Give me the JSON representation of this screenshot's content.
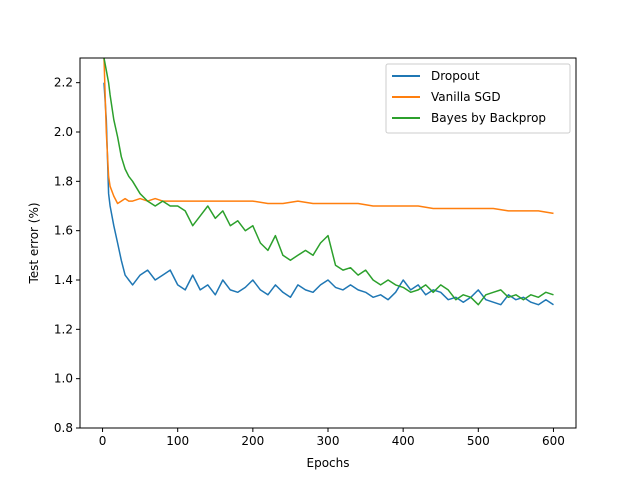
{
  "chart_data": {
    "type": "line",
    "xlabel": "Epochs",
    "ylabel": "Test error (%)",
    "xlim": [
      -30,
      630
    ],
    "ylim": [
      0.8,
      2.3
    ],
    "xticks": [
      0,
      100,
      200,
      300,
      400,
      500,
      600
    ],
    "yticks": [
      0.8,
      1.0,
      1.2,
      1.4,
      1.6,
      1.8,
      2.0,
      2.2
    ],
    "ytick_labels": [
      "0.8",
      "1.0",
      "1.2",
      "1.4",
      "1.6",
      "1.8",
      "2.0",
      "2.2"
    ],
    "legend_position": "top-right",
    "grid": false,
    "series": [
      {
        "name": "Dropout",
        "color": "#1f77b4",
        "x": [
          2,
          5,
          8,
          10,
          15,
          20,
          25,
          30,
          35,
          40,
          50,
          60,
          70,
          80,
          90,
          100,
          110,
          120,
          130,
          140,
          150,
          160,
          170,
          180,
          190,
          200,
          210,
          220,
          230,
          240,
          250,
          260,
          270,
          280,
          290,
          300,
          310,
          320,
          330,
          340,
          350,
          360,
          370,
          380,
          390,
          400,
          410,
          420,
          430,
          440,
          450,
          460,
          470,
          480,
          490,
          500,
          510,
          520,
          530,
          540,
          550,
          560,
          570,
          580,
          590,
          600
        ],
        "y": [
          2.2,
          2.05,
          1.75,
          1.7,
          1.62,
          1.55,
          1.48,
          1.42,
          1.4,
          1.38,
          1.42,
          1.44,
          1.4,
          1.42,
          1.44,
          1.38,
          1.36,
          1.42,
          1.36,
          1.38,
          1.34,
          1.4,
          1.36,
          1.35,
          1.37,
          1.4,
          1.36,
          1.34,
          1.38,
          1.35,
          1.33,
          1.38,
          1.36,
          1.35,
          1.38,
          1.4,
          1.37,
          1.36,
          1.38,
          1.36,
          1.35,
          1.33,
          1.34,
          1.32,
          1.35,
          1.4,
          1.36,
          1.38,
          1.34,
          1.36,
          1.35,
          1.32,
          1.33,
          1.31,
          1.33,
          1.36,
          1.32,
          1.31,
          1.3,
          1.34,
          1.32,
          1.33,
          1.31,
          1.3,
          1.32,
          1.3
        ]
      },
      {
        "name": "Vanilla SGD",
        "color": "#ff7f0e",
        "x": [
          2,
          5,
          8,
          10,
          15,
          20,
          25,
          30,
          35,
          40,
          50,
          60,
          70,
          80,
          90,
          100,
          120,
          140,
          160,
          180,
          200,
          220,
          240,
          260,
          280,
          300,
          320,
          340,
          360,
          380,
          400,
          420,
          440,
          460,
          480,
          500,
          520,
          540,
          560,
          580,
          600
        ],
        "y": [
          2.3,
          2.0,
          1.82,
          1.78,
          1.74,
          1.71,
          1.72,
          1.73,
          1.72,
          1.72,
          1.73,
          1.72,
          1.73,
          1.72,
          1.72,
          1.72,
          1.72,
          1.72,
          1.72,
          1.72,
          1.72,
          1.71,
          1.71,
          1.72,
          1.71,
          1.71,
          1.71,
          1.71,
          1.7,
          1.7,
          1.7,
          1.7,
          1.69,
          1.69,
          1.69,
          1.69,
          1.69,
          1.68,
          1.68,
          1.68,
          1.67
        ]
      },
      {
        "name": "Bayes by Backprop",
        "color": "#2ca02c",
        "x": [
          2,
          5,
          8,
          10,
          15,
          20,
          25,
          30,
          35,
          40,
          50,
          60,
          70,
          80,
          90,
          100,
          110,
          120,
          130,
          140,
          150,
          160,
          170,
          180,
          190,
          200,
          210,
          220,
          230,
          240,
          250,
          260,
          270,
          280,
          290,
          300,
          310,
          320,
          330,
          340,
          350,
          360,
          370,
          380,
          390,
          400,
          410,
          420,
          430,
          440,
          450,
          460,
          470,
          480,
          490,
          500,
          510,
          520,
          530,
          540,
          550,
          560,
          570,
          580,
          590,
          600
        ],
        "y": [
          2.3,
          2.25,
          2.2,
          2.15,
          2.05,
          1.98,
          1.9,
          1.85,
          1.82,
          1.8,
          1.75,
          1.72,
          1.7,
          1.72,
          1.7,
          1.7,
          1.68,
          1.62,
          1.66,
          1.7,
          1.65,
          1.68,
          1.62,
          1.64,
          1.6,
          1.62,
          1.55,
          1.52,
          1.58,
          1.5,
          1.48,
          1.5,
          1.52,
          1.5,
          1.55,
          1.58,
          1.46,
          1.44,
          1.45,
          1.42,
          1.44,
          1.4,
          1.38,
          1.4,
          1.38,
          1.37,
          1.35,
          1.36,
          1.38,
          1.35,
          1.38,
          1.36,
          1.32,
          1.34,
          1.33,
          1.3,
          1.34,
          1.35,
          1.36,
          1.33,
          1.34,
          1.32,
          1.34,
          1.33,
          1.35,
          1.34
        ]
      }
    ]
  }
}
